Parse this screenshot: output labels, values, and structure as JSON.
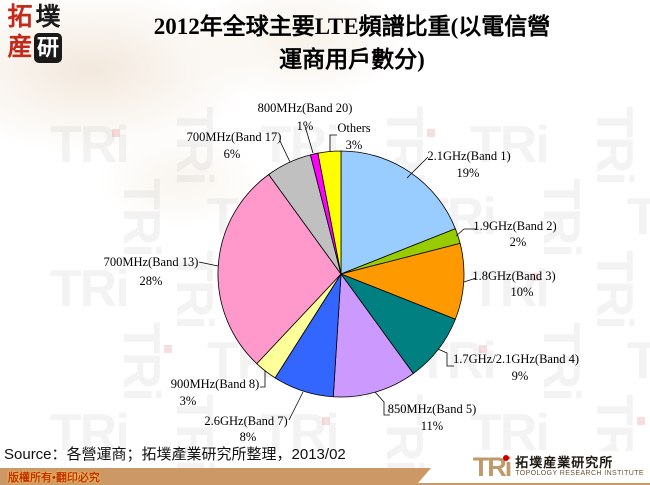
{
  "header": {
    "title_line1": "2012年全球主要LTE頻譜比重(以電信營",
    "title_line2": "運商用戶數分)",
    "logo_chars": [
      "拓",
      "墣",
      "産",
      "研"
    ]
  },
  "chart_data": {
    "type": "pie",
    "title": "2012年全球主要LTE頻譜比重(以電信營運商用戶數分)",
    "direction": "clockwise",
    "start_angle_deg": 0,
    "legend_position": "none",
    "slices": [
      {
        "label": "2.1GHz(Band 1)",
        "pct": "19%",
        "value": 19,
        "color": "#99CCFF"
      },
      {
        "label": "1.9GHz(Band 2)",
        "pct": "2%",
        "value": 2,
        "color": "#99CC00"
      },
      {
        "label": "1.8GHz(Band 3)",
        "pct": "10%",
        "value": 10,
        "color": "#FF9900"
      },
      {
        "label": "1.7GHz/2.1GHz(Band 4)",
        "pct": "9%",
        "value": 9,
        "color": "#008080"
      },
      {
        "label": "850MHz(Band 5)",
        "pct": "11%",
        "value": 11,
        "color": "#CC99FF"
      },
      {
        "label": "2.6GHz(Band 7)",
        "pct": "8%",
        "value": 8,
        "color": "#3366FF"
      },
      {
        "label": "900MHz(Band 8)",
        "pct": "3%",
        "value": 3,
        "color": "#FFFF99"
      },
      {
        "label": "700MHz(Band 13)",
        "pct": "28%",
        "value": 28,
        "color": "#FF99CC"
      },
      {
        "label": "700MHz(Band 17)",
        "pct": "6%",
        "value": 6,
        "color": "#C0C0C0"
      },
      {
        "label": "800MHz(Band 20)",
        "pct": "1%",
        "value": 1,
        "color": "#FF00FF"
      },
      {
        "label": "Others",
        "pct": "3%",
        "value": 3,
        "color": "#FFFF00"
      }
    ]
  },
  "footer": {
    "source": "Source：各營運商；拓墣產業研究所整理，2013/02",
    "copyright": "版權所有•翻印必究",
    "logo": {
      "tri": "TRi",
      "cn": "拓墣産業研究所",
      "en": "TOPOLOGY RESEARCH INSTITUTE"
    }
  },
  "watermark_text": "TRi",
  "colors": {
    "bar_tan": "#CC9966",
    "logo_tan": "#BE9A68",
    "logo_red": "#CC0000",
    "seal_red": "#C42A1C",
    "copyright_red": "#C03000",
    "watermark_gray": "#9A9A9A",
    "watermark_red": "#CC3333"
  }
}
